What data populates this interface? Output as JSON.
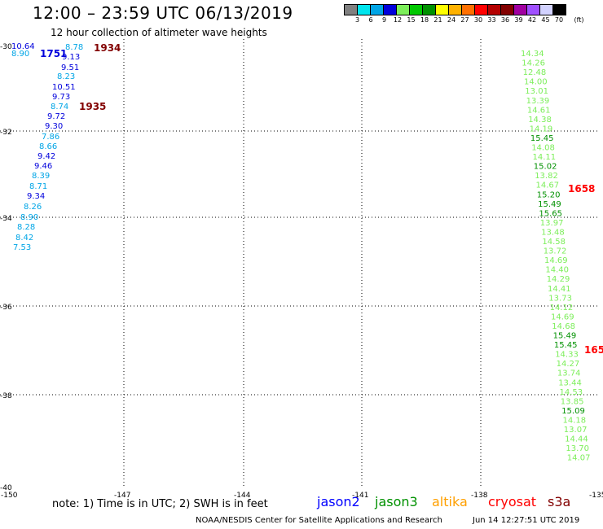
{
  "header": {
    "title": "12:00 – 23:59 UTC 06/13/2019",
    "subtitle": "12 hour collection of altimeter wave heights"
  },
  "legend": {
    "unit": "(ft)",
    "swatches": [
      {
        "color": "#808080",
        "label": "3"
      },
      {
        "color": "#00e5ee",
        "label": "6"
      },
      {
        "color": "#00a5e6",
        "label": "9"
      },
      {
        "color": "#0000dc",
        "label": "12"
      },
      {
        "color": "#7cee5a",
        "label": "15"
      },
      {
        "color": "#00c800",
        "label": "18"
      },
      {
        "color": "#009100",
        "label": "21"
      },
      {
        "color": "#ffff00",
        "label": "24"
      },
      {
        "color": "#ffb200",
        "label": "27"
      },
      {
        "color": "#ff7000",
        "label": "30"
      },
      {
        "color": "#ff0000",
        "label": "33"
      },
      {
        "color": "#b40000",
        "label": "36"
      },
      {
        "color": "#820000",
        "label": "39"
      },
      {
        "color": "#a000a0",
        "label": "42"
      },
      {
        "color": "#a050ff",
        "label": "45"
      },
      {
        "color": "#d2d2ff",
        "label": "70"
      },
      {
        "color": "#000000",
        "label": ""
      }
    ]
  },
  "map": {
    "xticks": [
      "-150",
      "-147",
      "-144",
      "-141",
      "-138",
      "-135"
    ],
    "yticks": [
      "-30",
      "-32",
      "-34",
      "-36",
      "-38",
      "-40"
    ],
    "colors": {
      "grey": "#808080",
      "cyan": "#00e5ee",
      "sky": "#00a5e6",
      "navy": "#0000dc",
      "light_green": "#7cee5a",
      "green": "#00c800",
      "dark_green": "#009100",
      "maroon": "#820000",
      "red": "#ff0000",
      "blue": "#0000ff"
    },
    "times": [
      {
        "text": "1934",
        "color": "#820000"
      },
      {
        "text": "1751",
        "color": "#0000dc"
      },
      {
        "text": "1935",
        "color": "#820000"
      },
      {
        "text": "1658",
        "color": "#ff0000"
      },
      {
        "text": "165",
        "color": "#ff0000"
      }
    ],
    "west_track": [
      {
        "text": "10.64",
        "color": "#0000dc"
      },
      {
        "text": "8.90",
        "color": "#00a5e6"
      },
      {
        "text": "8.78",
        "color": "#00a5e6"
      },
      {
        "text": "9.13",
        "color": "#0000dc"
      },
      {
        "text": "9.51",
        "color": "#0000dc"
      },
      {
        "text": "8.23",
        "color": "#00a5e6"
      },
      {
        "text": "10.51",
        "color": "#0000dc"
      },
      {
        "text": "9.73",
        "color": "#0000dc"
      },
      {
        "text": "8.74",
        "color": "#00a5e6"
      },
      {
        "text": "9.72",
        "color": "#0000dc"
      },
      {
        "text": "9.30",
        "color": "#0000dc"
      },
      {
        "text": "7.86",
        "color": "#00a5e6"
      },
      {
        "text": "8.66",
        "color": "#00a5e6"
      },
      {
        "text": "9.42",
        "color": "#0000dc"
      },
      {
        "text": "9.46",
        "color": "#0000dc"
      },
      {
        "text": "8.39",
        "color": "#00a5e6"
      },
      {
        "text": "8.71",
        "color": "#00a5e6"
      },
      {
        "text": "9.34",
        "color": "#0000dc"
      },
      {
        "text": "8.26",
        "color": "#00a5e6"
      },
      {
        "text": "8.90",
        "color": "#00a5e6"
      },
      {
        "text": "8.28",
        "color": "#00a5e6"
      },
      {
        "text": "8.42",
        "color": "#00a5e6"
      },
      {
        "text": "7.53",
        "color": "#00a5e6"
      }
    ],
    "east_track": [
      {
        "text": "14.34",
        "color": "#7cee5a"
      },
      {
        "text": "14.26",
        "color": "#7cee5a"
      },
      {
        "text": "12.48",
        "color": "#7cee5a"
      },
      {
        "text": "14.00",
        "color": "#7cee5a"
      },
      {
        "text": "13.01",
        "color": "#7cee5a"
      },
      {
        "text": "13.39",
        "color": "#7cee5a"
      },
      {
        "text": "14.61",
        "color": "#7cee5a"
      },
      {
        "text": "14.38",
        "color": "#7cee5a"
      },
      {
        "text": "14.19",
        "color": "#7cee5a"
      },
      {
        "text": "15.45",
        "color": "#009100"
      },
      {
        "text": "14.08",
        "color": "#7cee5a"
      },
      {
        "text": "14.11",
        "color": "#7cee5a"
      },
      {
        "text": "15.02",
        "color": "#009100"
      },
      {
        "text": "13.82",
        "color": "#7cee5a"
      },
      {
        "text": "14.67",
        "color": "#7cee5a"
      },
      {
        "text": "15.20",
        "color": "#009100"
      },
      {
        "text": "15.49",
        "color": "#009100"
      },
      {
        "text": "15.65",
        "color": "#009100"
      },
      {
        "text": "13.97",
        "color": "#7cee5a"
      },
      {
        "text": "13.48",
        "color": "#7cee5a"
      },
      {
        "text": "14.58",
        "color": "#7cee5a"
      },
      {
        "text": "13.72",
        "color": "#7cee5a"
      },
      {
        "text": "14.69",
        "color": "#7cee5a"
      },
      {
        "text": "14.40",
        "color": "#7cee5a"
      },
      {
        "text": "14.29",
        "color": "#7cee5a"
      },
      {
        "text": "14.41",
        "color": "#7cee5a"
      },
      {
        "text": "13.73",
        "color": "#7cee5a"
      },
      {
        "text": "14.12",
        "color": "#7cee5a"
      },
      {
        "text": "14.69",
        "color": "#7cee5a"
      },
      {
        "text": "14.68",
        "color": "#7cee5a"
      },
      {
        "text": "15.49",
        "color": "#009100"
      },
      {
        "text": "15.45",
        "color": "#009100"
      },
      {
        "text": "14.33",
        "color": "#7cee5a"
      },
      {
        "text": "14.27",
        "color": "#7cee5a"
      },
      {
        "text": "13.74",
        "color": "#7cee5a"
      },
      {
        "text": "13.44",
        "color": "#7cee5a"
      },
      {
        "text": "14.53",
        "color": "#7cee5a"
      },
      {
        "text": "13.85",
        "color": "#7cee5a"
      },
      {
        "text": "15.09",
        "color": "#009100"
      },
      {
        "text": "14.18",
        "color": "#7cee5a"
      },
      {
        "text": "13.07",
        "color": "#7cee5a"
      },
      {
        "text": "14.44",
        "color": "#7cee5a"
      },
      {
        "text": "13.70",
        "color": "#7cee5a"
      },
      {
        "text": "14.07",
        "color": "#7cee5a"
      }
    ]
  },
  "footer": {
    "note": "note: 1) Time is in UTC; 2) SWH is in feet",
    "satellites": [
      {
        "name": "jason2",
        "color": "#0000ff"
      },
      {
        "name": "jason3",
        "color": "#009100"
      },
      {
        "name": "altika",
        "color": "#ffa000"
      },
      {
        "name": "cryosat",
        "color": "#ff0000"
      },
      {
        "name": "s3a",
        "color": "#820000"
      }
    ],
    "credit": "NOAA/NESDIS Center for Satellite Applications and Research",
    "timestamp": "Jun 14 12:27:51 UTC 2019"
  }
}
